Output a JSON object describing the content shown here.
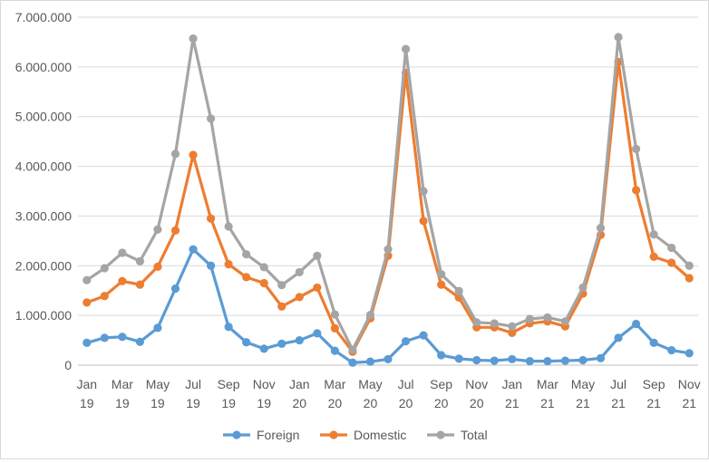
{
  "chart_data": {
    "type": "line",
    "title": "",
    "xlabel": "",
    "ylabel": "",
    "ylim": [
      0,
      7000000
    ],
    "y_ticks": [
      {
        "value": 0,
        "label": "0"
      },
      {
        "value": 1000000,
        "label": "1.000.000"
      },
      {
        "value": 2000000,
        "label": "2.000.000"
      },
      {
        "value": 3000000,
        "label": "3.000.000"
      },
      {
        "value": 4000000,
        "label": "4.000.000"
      },
      {
        "value": 5000000,
        "label": "5.000.000"
      },
      {
        "value": 6000000,
        "label": "6.000.000"
      },
      {
        "value": 7000000,
        "label": "7.000.000"
      }
    ],
    "grid": true,
    "legend_position": "bottom",
    "categories": [
      "Jan 19",
      "Feb 19",
      "Mar 19",
      "Apr 19",
      "May 19",
      "Jun 19",
      "Jul 19",
      "Aug 19",
      "Sep 19",
      "Oct 19",
      "Nov 19",
      "Dec 19",
      "Jan 20",
      "Feb 20",
      "Mar 20",
      "Apr 20",
      "May 20",
      "Jun 20",
      "Jul 20",
      "Aug 20",
      "Sep 20",
      "Oct 20",
      "Nov 20",
      "Dec 20",
      "Jan 21",
      "Feb 21",
      "Mar 21",
      "Apr 21",
      "May 21",
      "Jun 21",
      "Jul 21",
      "Aug 21",
      "Sep 21",
      "Oct 21",
      "Nov 21"
    ],
    "x_tick_labels": [
      {
        "index": 0,
        "month": "Jan",
        "year": "19"
      },
      {
        "index": 2,
        "month": "Mar",
        "year": "19"
      },
      {
        "index": 4,
        "month": "May",
        "year": "19"
      },
      {
        "index": 6,
        "month": "Jul",
        "year": "19"
      },
      {
        "index": 8,
        "month": "Sep",
        "year": "19"
      },
      {
        "index": 10,
        "month": "Nov",
        "year": "19"
      },
      {
        "index": 12,
        "month": "Jan",
        "year": "20"
      },
      {
        "index": 14,
        "month": "Mar",
        "year": "20"
      },
      {
        "index": 16,
        "month": "May",
        "year": "20"
      },
      {
        "index": 18,
        "month": "Jul",
        "year": "20"
      },
      {
        "index": 20,
        "month": "Sep",
        "year": "20"
      },
      {
        "index": 22,
        "month": "Nov",
        "year": "20"
      },
      {
        "index": 24,
        "month": "Jan",
        "year": "21"
      },
      {
        "index": 26,
        "month": "Mar",
        "year": "21"
      },
      {
        "index": 28,
        "month": "May",
        "year": "21"
      },
      {
        "index": 30,
        "month": "Jul",
        "year": "21"
      },
      {
        "index": 32,
        "month": "Sep",
        "year": "21"
      },
      {
        "index": 34,
        "month": "Nov",
        "year": "21"
      }
    ],
    "series": [
      {
        "name": "Foreign",
        "color": "#5B9BD5",
        "values": [
          450000,
          550000,
          570000,
          470000,
          750000,
          1540000,
          2330000,
          2000000,
          770000,
          460000,
          330000,
          430000,
          500000,
          640000,
          290000,
          50000,
          70000,
          120000,
          480000,
          600000,
          200000,
          130000,
          100000,
          90000,
          120000,
          80000,
          80000,
          90000,
          100000,
          140000,
          550000,
          830000,
          450000,
          300000,
          240000
        ]
      },
      {
        "name": "Domestic",
        "color": "#ED7D31",
        "values": [
          1260000,
          1390000,
          1690000,
          1620000,
          1980000,
          2710000,
          4230000,
          2950000,
          2030000,
          1770000,
          1650000,
          1180000,
          1370000,
          1560000,
          740000,
          270000,
          940000,
          2200000,
          5880000,
          2900000,
          1620000,
          1360000,
          760000,
          760000,
          650000,
          840000,
          880000,
          780000,
          1440000,
          2620000,
          6100000,
          3520000,
          2180000,
          2060000,
          1750000
        ]
      },
      {
        "name": "Total",
        "color": "#A5A5A5",
        "values": [
          1710000,
          1950000,
          2260000,
          2090000,
          2730000,
          4250000,
          6570000,
          4960000,
          2790000,
          2230000,
          1970000,
          1610000,
          1870000,
          2200000,
          1020000,
          310000,
          1010000,
          2330000,
          6360000,
          3500000,
          1830000,
          1490000,
          860000,
          840000,
          780000,
          930000,
          960000,
          880000,
          1560000,
          2760000,
          6600000,
          4350000,
          2630000,
          2360000,
          2000000
        ]
      }
    ]
  }
}
